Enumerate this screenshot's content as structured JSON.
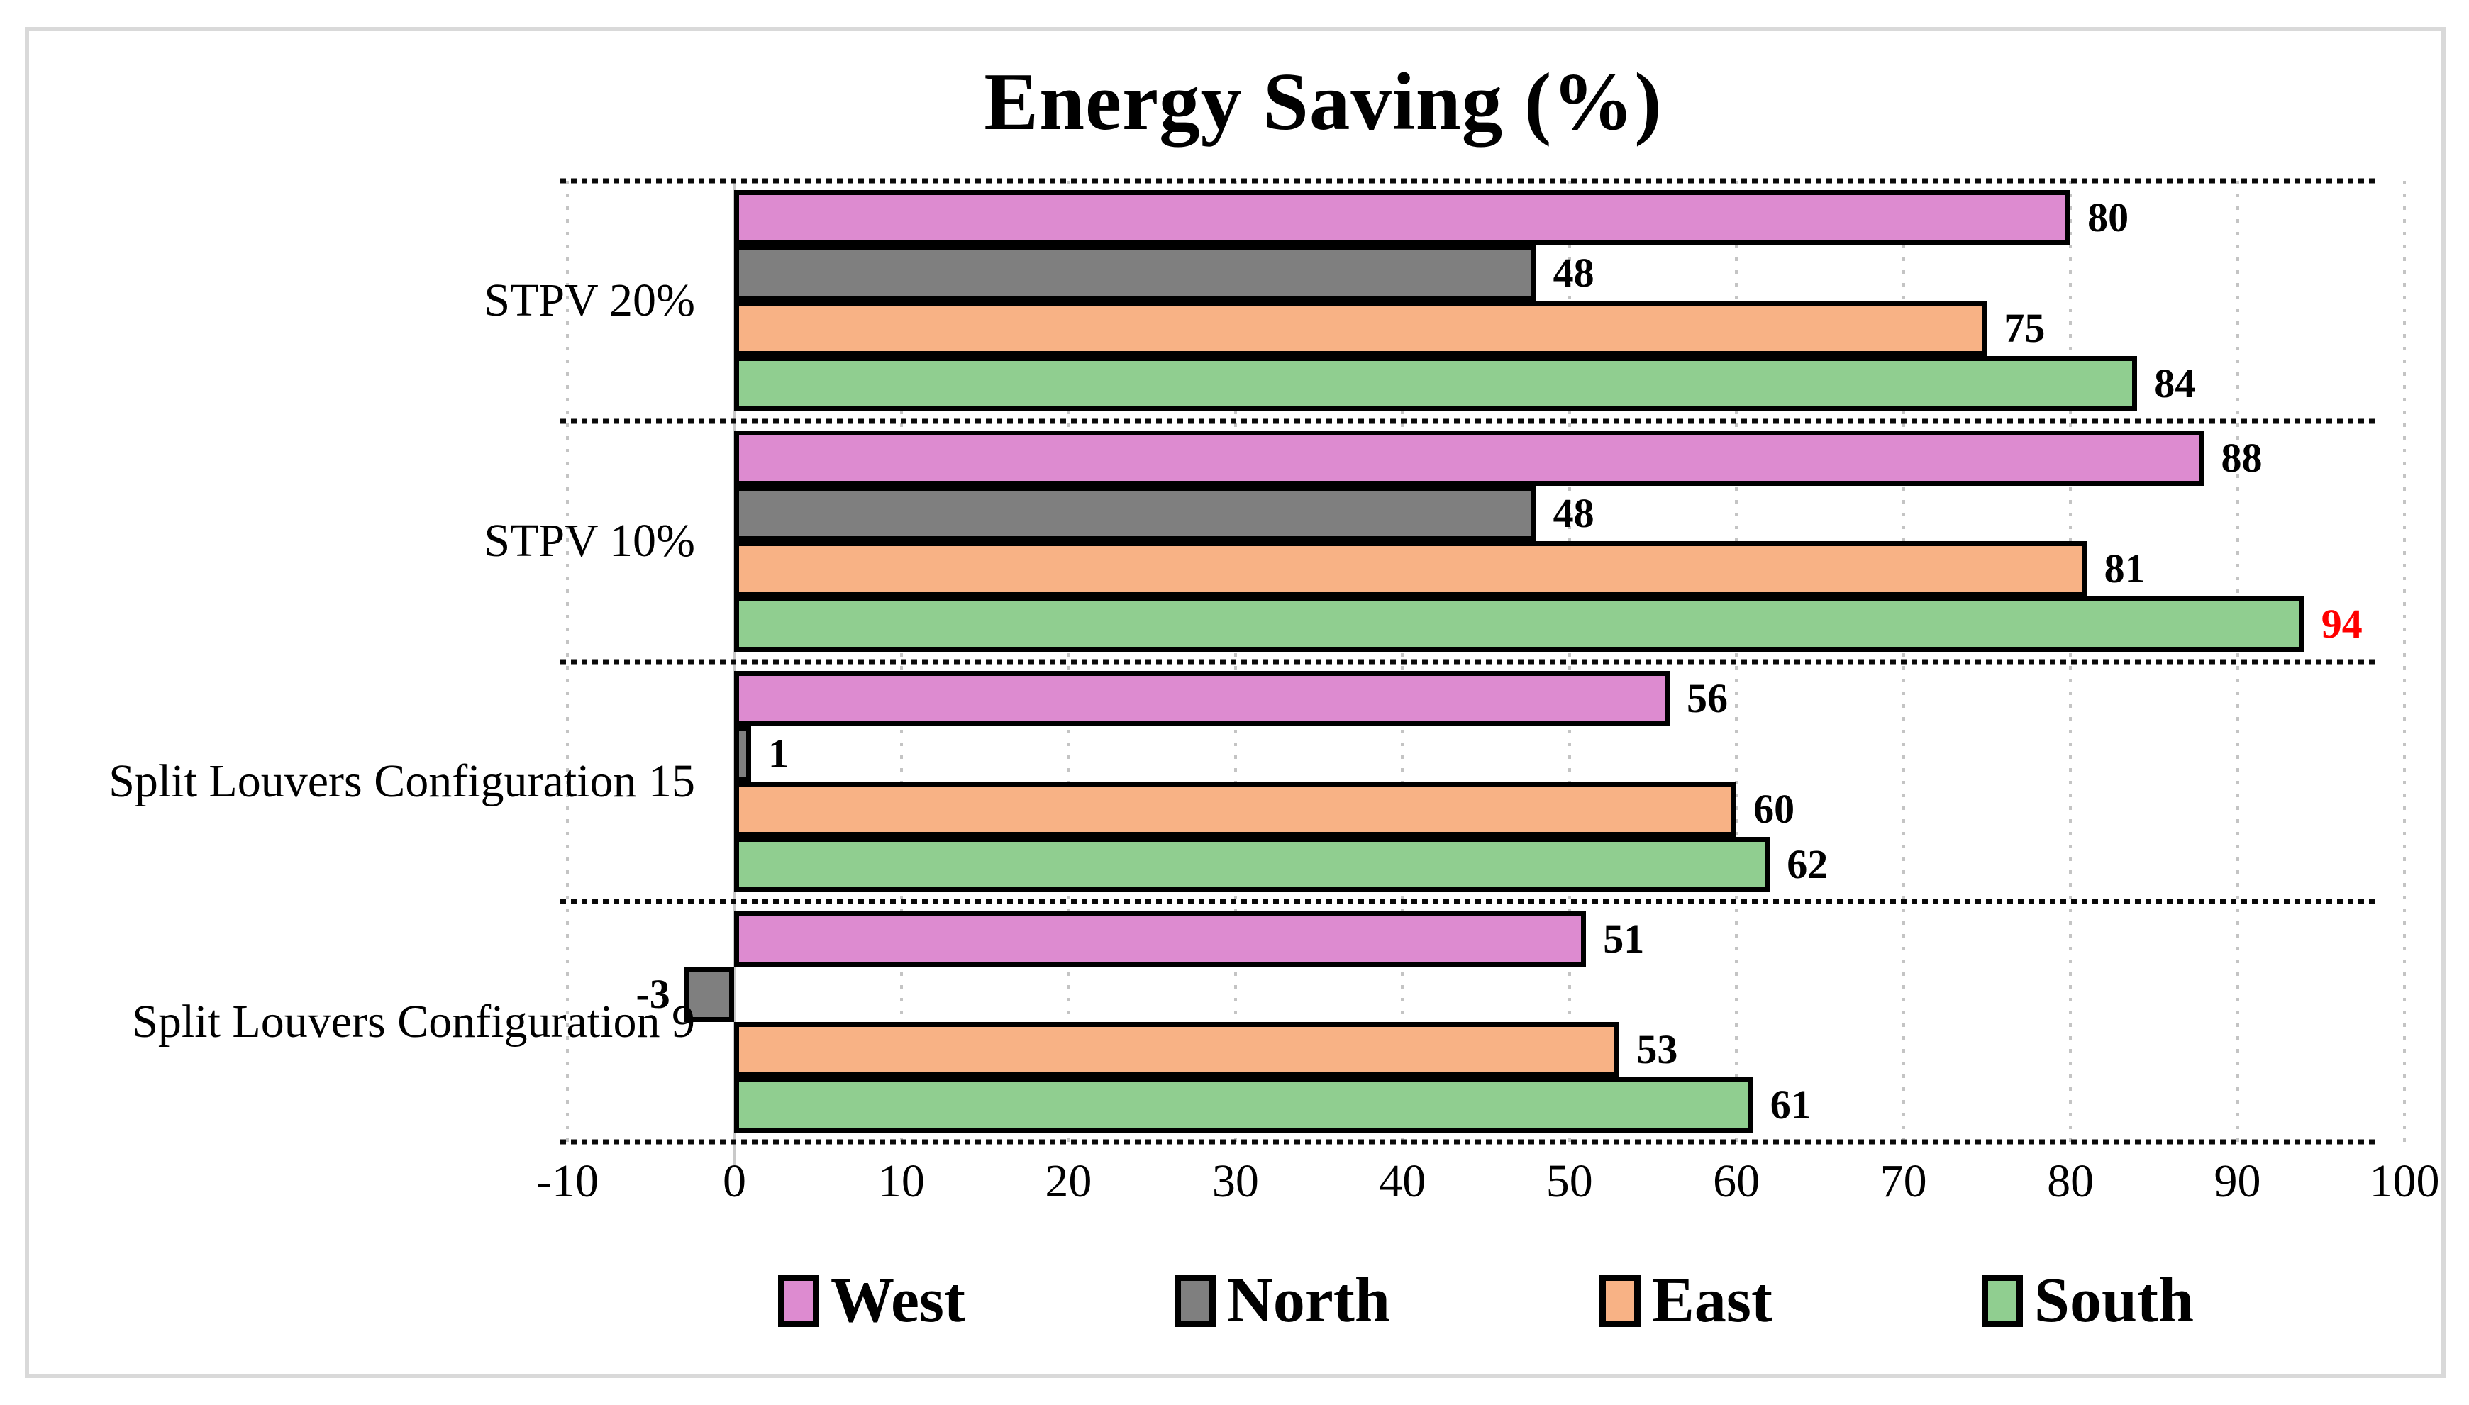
{
  "title": "Energy Saving (%)",
  "chart_data": {
    "type": "bar",
    "orientation": "horizontal",
    "title": "Energy Saving (%)",
    "categories": [
      "STPV 20%",
      "STPV 10%",
      "Split Louvers Configuration 15",
      "Split Louvers Configuration 9"
    ],
    "series": [
      {
        "name": "West",
        "color": "#DD8BD0",
        "values": [
          80,
          88,
          56,
          51
        ]
      },
      {
        "name": "North",
        "color": "#7F7F7F",
        "values": [
          48,
          48,
          1,
          -3
        ]
      },
      {
        "name": "East",
        "color": "#F8B285",
        "values": [
          75,
          81,
          60,
          53
        ]
      },
      {
        "name": "South",
        "color": "#90CE90",
        "values": [
          84,
          94,
          62,
          61
        ]
      }
    ],
    "highlight": {
      "series": "South",
      "category": "STPV 10%",
      "value": 94,
      "label_color": "#FF0000"
    },
    "xlim": [
      -10,
      100
    ],
    "x_ticks": [
      -10,
      0,
      10,
      20,
      30,
      40,
      50,
      60,
      70,
      80,
      90,
      100
    ],
    "grid": "dotted-vertical",
    "legend_position": "bottom",
    "legend": [
      "West",
      "North",
      "East",
      "South"
    ],
    "colors": {
      "bar_border": "#000000",
      "gridline": "#c4c4c4",
      "zero_axis": "#c9c9c9",
      "separator": "#0a0a0a",
      "frame_border": "#d9d9d9",
      "highlight_label": "#FF0000",
      "label": "#000000"
    }
  }
}
